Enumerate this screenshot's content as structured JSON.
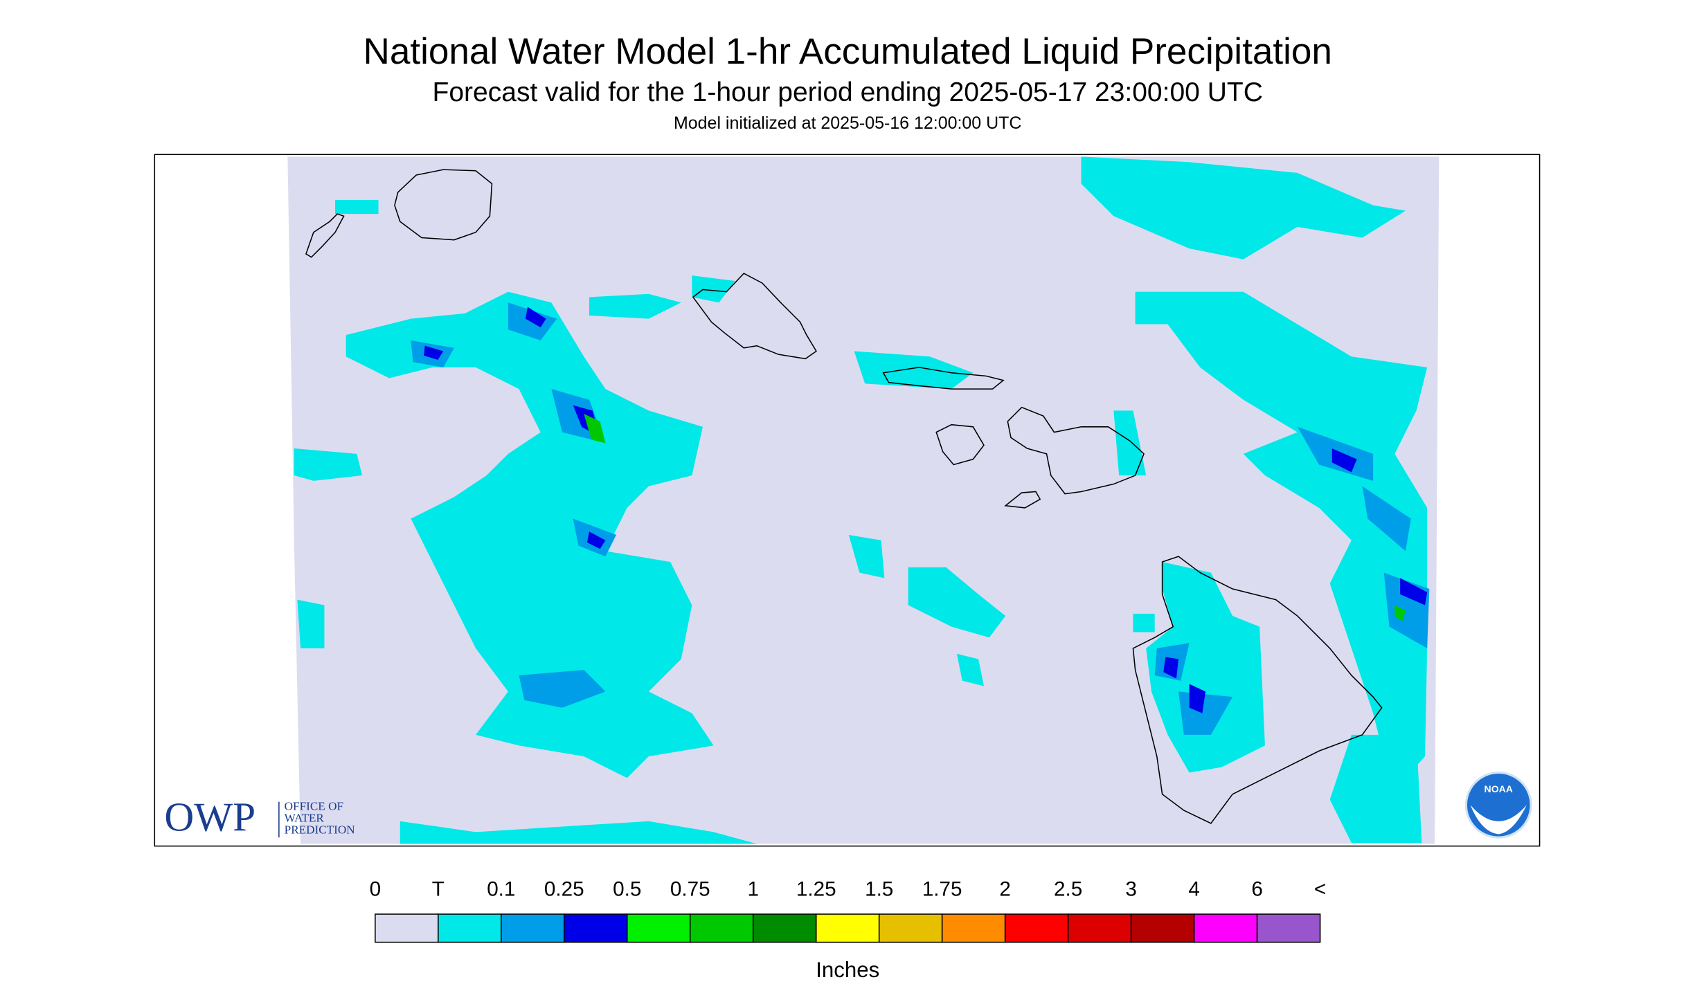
{
  "header": {
    "title": "National Water Model 1-hr Accumulated Liquid Precipitation",
    "subtitle": "Forecast valid for the 1-hour period ending 2025-05-17 23:00:00 UTC",
    "init": "Model initialized at 2025-05-16 12:00:00 UTC"
  },
  "legend": {
    "labels": [
      "0",
      "T",
      "0.1",
      "0.25",
      "0.5",
      "0.75",
      "1",
      "1.25",
      "1.5",
      "1.75",
      "2",
      "2.5",
      "3",
      "4",
      "6",
      "<"
    ],
    "colors": [
      "#dcdcf0",
      "#00e8e8",
      "#009ee8",
      "#0000e8",
      "#00f000",
      "#00c800",
      "#008c00",
      "#ffff00",
      "#e6c000",
      "#ff8c00",
      "#ff0000",
      "#dc0000",
      "#b40000",
      "#ff00ff",
      "#9955cc"
    ],
    "unit": "Inches"
  },
  "logos": {
    "owp": "OWP",
    "owp_line1": "OFFICE OF",
    "owp_line2": "WATER",
    "owp_line3": "PREDICTION",
    "noaa": "NOAA"
  }
}
